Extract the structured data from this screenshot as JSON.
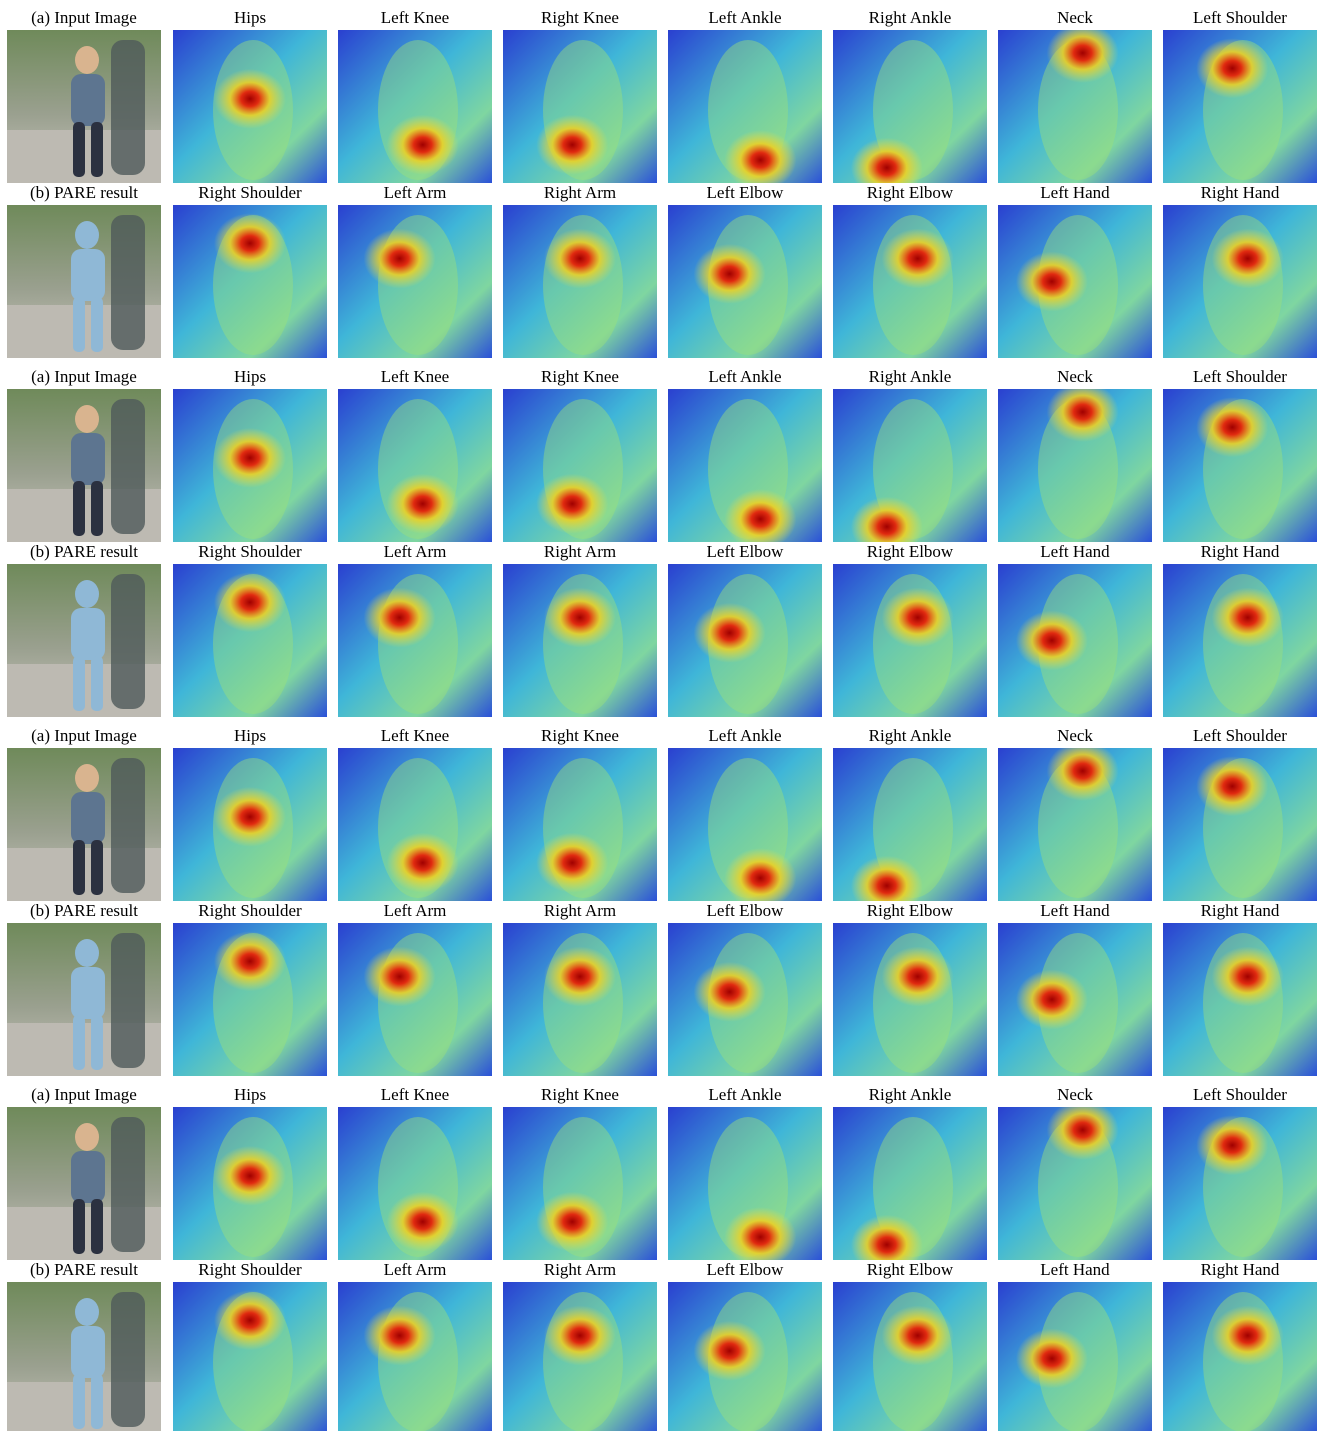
{
  "groups": [
    {
      "rows": [
        [
          "(a) Input Image",
          "Hips",
          "Left Knee",
          "Right Knee",
          "Left Ankle",
          "Right Ankle",
          "Neck",
          "Left Shoulder"
        ],
        [
          "(b) PARE result",
          "Right Shoulder",
          "Left Arm",
          "Right Arm",
          "Left Elbow",
          "Right Elbow",
          "Left Hand",
          "Right Hand"
        ]
      ]
    },
    {
      "rows": [
        [
          "(a) Input Image",
          "Hips",
          "Left Knee",
          "Right Knee",
          "Left Ankle",
          "Right Ankle",
          "Neck",
          "Left Shoulder"
        ],
        [
          "(b) PARE result",
          "Right Shoulder",
          "Left Arm",
          "Right Arm",
          "Left Elbow",
          "Right Elbow",
          "Left Hand",
          "Right Hand"
        ]
      ]
    },
    {
      "rows": [
        [
          "(a) Input Image",
          "Hips",
          "Left Knee",
          "Right Knee",
          "Left Ankle",
          "Right Ankle",
          "Neck",
          "Left Shoulder"
        ],
        [
          "(b) PARE result",
          "Right Shoulder",
          "Left Arm",
          "Right Arm",
          "Left Elbow",
          "Right Elbow",
          "Left Hand",
          "Right Hand"
        ]
      ]
    },
    {
      "rows": [
        [
          "(a) Input Image",
          "Hips",
          "Left Knee",
          "Right Knee",
          "Left Ankle",
          "Right Ankle",
          "Neck",
          "Left Shoulder"
        ],
        [
          "(b) PARE result",
          "Right Shoulder",
          "Left Arm",
          "Right Arm",
          "Left Elbow",
          "Right Elbow",
          "Left Hand",
          "Right Hand"
        ]
      ]
    }
  ]
}
